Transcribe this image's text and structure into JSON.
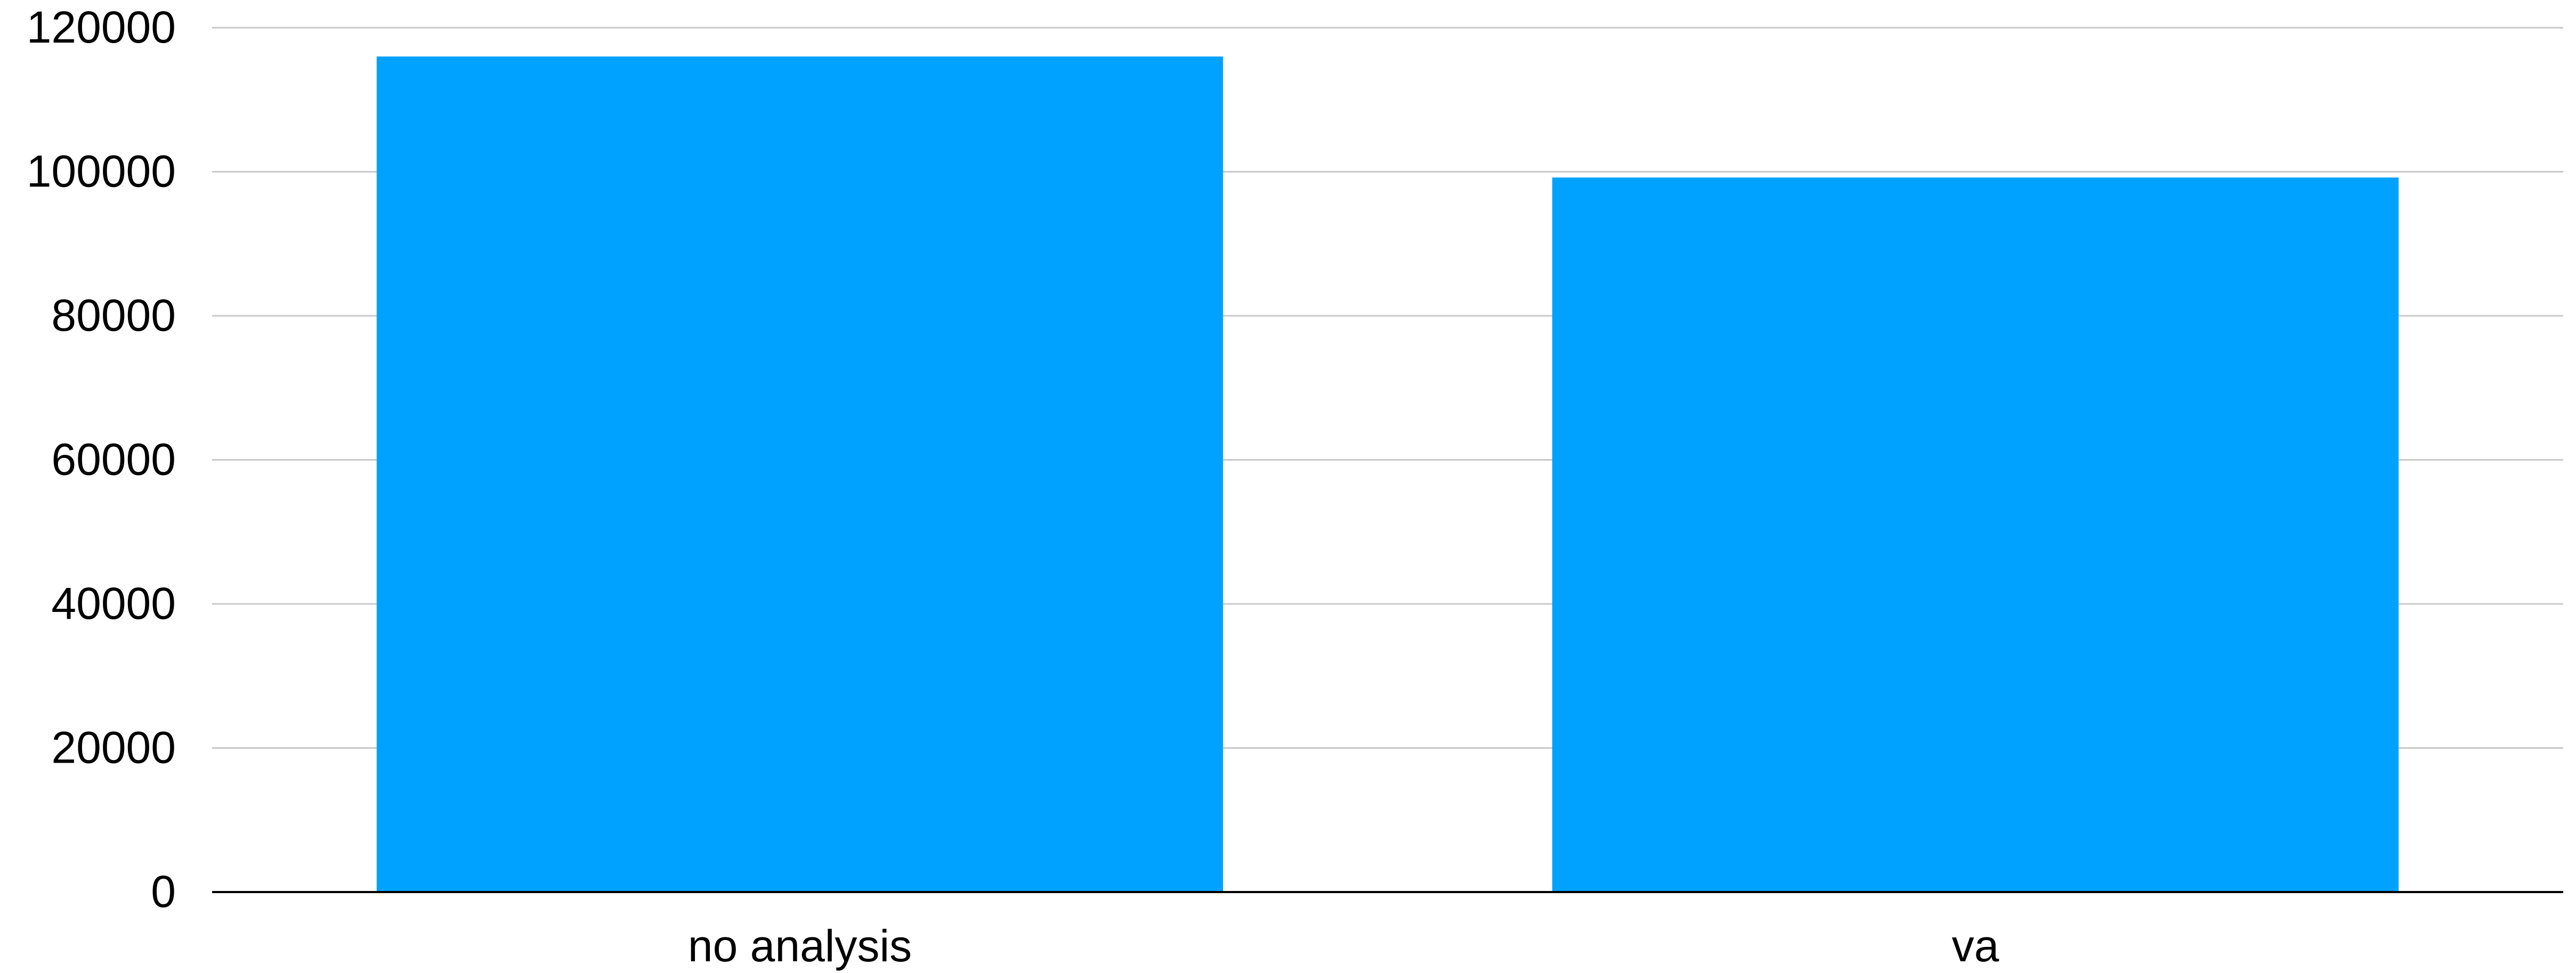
{
  "chart_data": {
    "type": "bar",
    "title": "",
    "xlabel": "",
    "ylabel": "",
    "categories": [
      "no analysis",
      "va"
    ],
    "series": [
      {
        "values": [
          116000,
          99200
        ]
      }
    ],
    "ylim": [
      0,
      120000
    ],
    "yticks": [
      0,
      20000,
      40000,
      60000,
      80000,
      100000,
      120000
    ],
    "ytick_labels": [
      "0",
      "20000",
      "40000",
      "60000",
      "80000",
      "100000",
      "120000"
    ],
    "grid": true,
    "legend": "none",
    "colors": {
      "bar": "#00A2FF",
      "grid": "#C8C8C8",
      "axis": "#000000"
    }
  }
}
